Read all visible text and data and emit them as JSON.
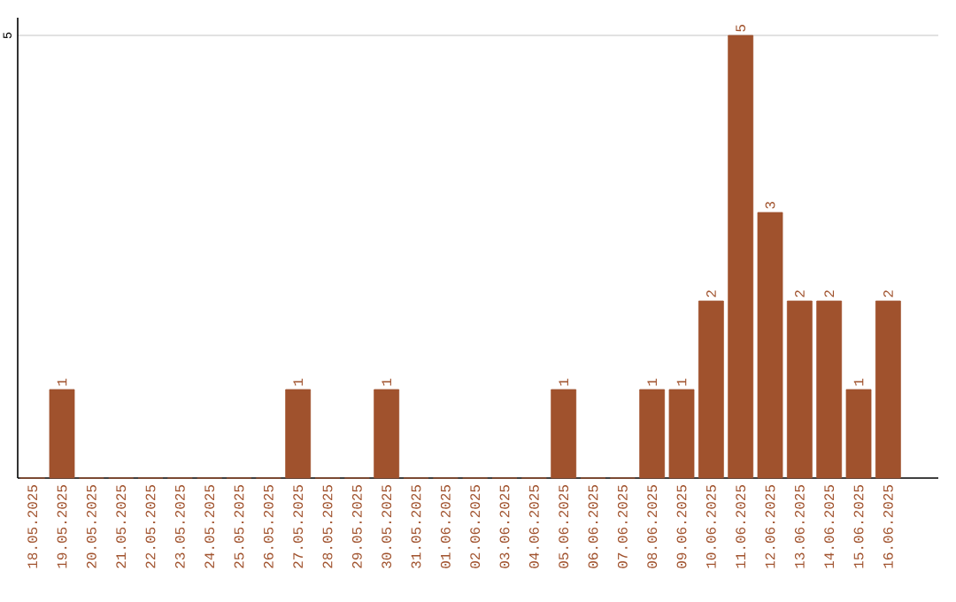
{
  "chart_data": {
    "type": "bar",
    "categories": [
      "18.05.2025",
      "19.05.2025",
      "20.05.2025",
      "21.05.2025",
      "22.05.2025",
      "23.05.2025",
      "24.05.2025",
      "25.05.2025",
      "26.05.2025",
      "27.05.2025",
      "28.05.2025",
      "29.05.2025",
      "30.05.2025",
      "31.05.2025",
      "01.06.2025",
      "02.06.2025",
      "03.06.2025",
      "04.06.2025",
      "05.06.2025",
      "06.06.2025",
      "07.06.2025",
      "08.06.2025",
      "09.06.2025",
      "10.06.2025",
      "11.06.2025",
      "12.06.2025",
      "13.06.2025",
      "14.06.2025",
      "15.06.2025",
      "16.06.2025"
    ],
    "values": [
      0,
      1,
      0,
      0,
      0,
      0,
      0,
      0,
      0,
      1,
      0,
      0,
      1,
      0,
      0,
      0,
      0,
      0,
      1,
      0,
      0,
      1,
      1,
      2,
      5,
      3,
      2,
      2,
      1,
      2
    ],
    "value_labels": [
      null,
      "1",
      null,
      null,
      null,
      null,
      null,
      null,
      null,
      "1",
      null,
      null,
      "1",
      null,
      null,
      null,
      null,
      null,
      "1",
      null,
      null,
      "1",
      "1",
      "2",
      "5",
      "3",
      "2",
      "2",
      "1",
      "2"
    ],
    "color": "#a0522d",
    "ylim": [
      0,
      5.2
    ],
    "yticks": [
      5
    ],
    "grid": "y"
  }
}
